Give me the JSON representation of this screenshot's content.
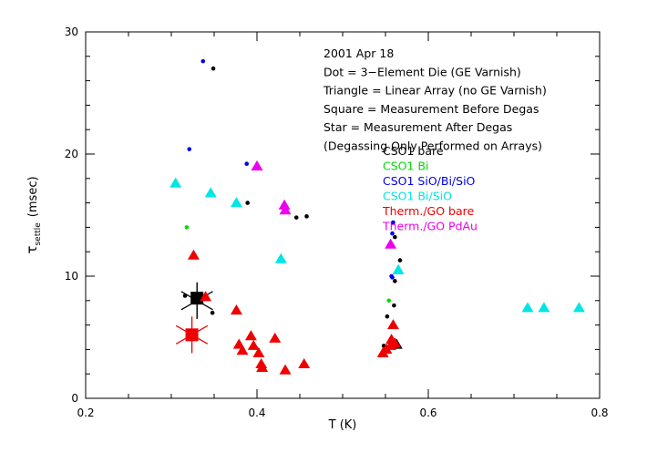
{
  "chart_data": {
    "type": "scatter",
    "xlabel": "T (K)",
    "ylabel_main": "τ",
    "ylabel_sub": "settle",
    "ylabel_unit": "(msec)",
    "xlim": [
      0.2,
      0.8
    ],
    "ylim": [
      0,
      30
    ],
    "xticks": [
      0.2,
      0.4,
      0.6,
      0.8
    ],
    "xtick_labels": [
      "0.2",
      "0.4",
      "0.6",
      "0.8"
    ],
    "yticks": [
      0,
      10,
      20,
      30
    ],
    "ytick_labels": [
      "0",
      "10",
      "20",
      "30"
    ],
    "grid": false,
    "annotations": [
      "2001 Apr 18",
      "Dot = 3−Element Die (GE Varnish)",
      "Triangle = Linear Array (no GE Varnish)",
      "Square = Measurement Before Degas",
      "Star = Measurement After Degas",
      "(Degassing Only Performed on Arrays)"
    ],
    "legend": [
      {
        "label": "CSO1 bare",
        "color": "#000000"
      },
      {
        "label": "CSO1 Bi",
        "color": "#00dd00"
      },
      {
        "label": "CSO1 SiO/Bi/SiO",
        "color": "#0000ee"
      },
      {
        "label": "CSO1 Bi/SiO",
        "color": "#00e5e5"
      },
      {
        "label": "Therm./GO bare",
        "color": "#ee0000"
      },
      {
        "label": "Therm./GO PdAu",
        "color": "#ee00ee"
      }
    ],
    "series": [
      {
        "name": "CSO1 bare",
        "color": "#000000",
        "marker": "dot",
        "x": [
          0.349,
          0.389,
          0.446,
          0.458,
          0.316,
          0.348,
          0.561,
          0.567,
          0.561,
          0.56,
          0.552,
          0.548
        ],
        "y": [
          27.0,
          16.0,
          14.8,
          14.9,
          8.4,
          7.0,
          13.2,
          11.3,
          9.6,
          7.6,
          6.7,
          4.3
        ]
      },
      {
        "name": "CSO1 bare",
        "color": "#000000",
        "marker": "triangle",
        "x": [
          0.563
        ],
        "y": [
          4.4
        ]
      },
      {
        "name": "CSO1 bare",
        "color": "#000000",
        "marker": "square",
        "x": [
          0.33
        ],
        "y": [
          8.2
        ]
      },
      {
        "name": "CSO1 bare",
        "color": "#000000",
        "marker": "star",
        "x": [
          0.33
        ],
        "y": [
          8.0
        ]
      },
      {
        "name": "CSO1 Bi",
        "color": "#00dd00",
        "marker": "dot",
        "x": [
          0.318,
          0.554
        ],
        "y": [
          14.0,
          8.0
        ]
      },
      {
        "name": "CSO1 SiO/Bi/SiO",
        "color": "#0000ee",
        "marker": "dot",
        "x": [
          0.337,
          0.321,
          0.388,
          0.559,
          0.558,
          0.557,
          0.558
        ],
        "y": [
          27.6,
          20.4,
          19.2,
          14.4,
          13.5,
          10.0,
          9.9
        ]
      },
      {
        "name": "CSO1 Bi/SiO",
        "color": "#00e5e5",
        "marker": "triangle",
        "x": [
          0.305,
          0.346,
          0.376,
          0.428,
          0.565,
          0.716,
          0.735,
          0.776
        ],
        "y": [
          17.6,
          16.8,
          16.0,
          11.4,
          10.5,
          7.4,
          7.4,
          7.4
        ]
      },
      {
        "name": "Therm./GO bare",
        "color": "#ee0000",
        "marker": "triangle",
        "x": [
          0.326,
          0.34,
          0.376,
          0.379,
          0.383,
          0.393,
          0.396,
          0.402,
          0.405,
          0.406,
          0.421,
          0.433,
          0.455,
          0.547,
          0.551,
          0.556,
          0.557,
          0.559,
          0.561
        ],
        "y": [
          11.7,
          8.3,
          7.2,
          4.4,
          3.9,
          5.1,
          4.3,
          3.7,
          2.8,
          2.5,
          4.9,
          2.3,
          2.8,
          3.7,
          4.0,
          4.3,
          4.8,
          6.0,
          4.5
        ]
      },
      {
        "name": "Therm./GO bare",
        "color": "#ee0000",
        "marker": "square",
        "x": [
          0.324
        ],
        "y": [
          5.2
        ]
      },
      {
        "name": "Therm./GO bare",
        "color": "#ee0000",
        "marker": "star",
        "x": [
          0.324
        ],
        "y": [
          5.2
        ]
      },
      {
        "name": "Therm./GO PdAu",
        "color": "#ee00ee",
        "marker": "triangle",
        "x": [
          0.4,
          0.432,
          0.433,
          0.556
        ],
        "y": [
          19.0,
          15.8,
          15.4,
          12.6
        ]
      }
    ]
  }
}
